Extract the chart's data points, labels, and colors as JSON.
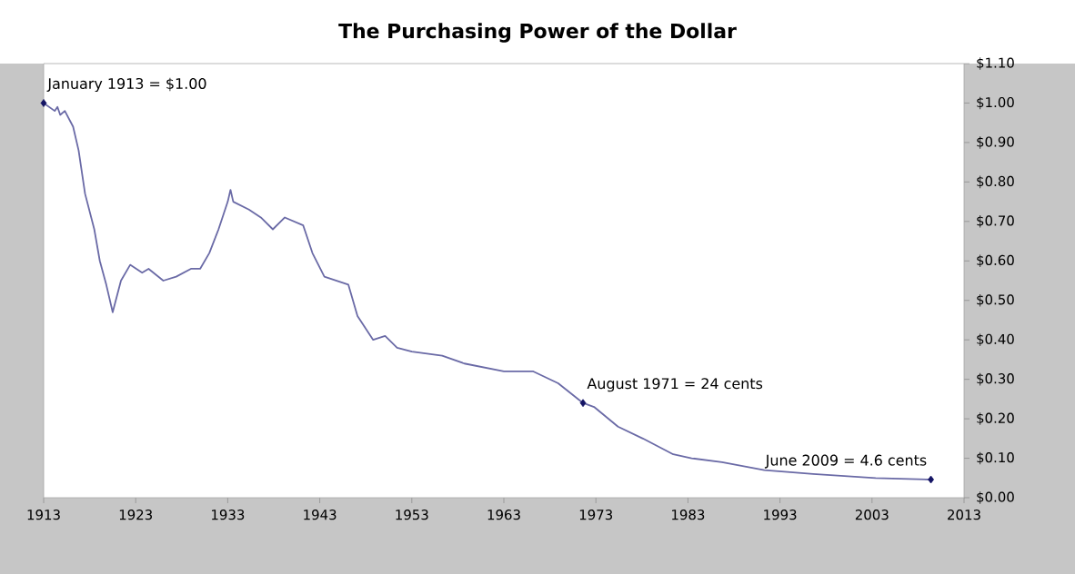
{
  "chart_data": {
    "type": "line",
    "title": "The Purchasing Power of the Dollar",
    "series": [
      {
        "color": "#6a6aa6",
        "x": [
          1913,
          1914.2,
          1914.5,
          1914.8,
          1915.3,
          1916.2,
          1916.8,
          1917.5,
          1918.5,
          1919.1,
          1919.8,
          1920.5,
          1921.4,
          1922.4,
          1923.7,
          1924.4,
          1926,
          1927.4,
          1929,
          1930,
          1931,
          1932,
          1933,
          1933.3,
          1933.6,
          1935.3,
          1936.6,
          1937.9,
          1939.2,
          1941.2,
          1942.2,
          1943.5,
          1946.1,
          1947.1,
          1948.8,
          1950.1,
          1951.4,
          1953,
          1956.3,
          1958.7,
          1963,
          1966.2,
          1968.9,
          1971.6,
          1972.8,
          1975.4,
          1978.1,
          1981.4,
          1983.4,
          1986.7,
          1991.3,
          1996.6,
          2003.4,
          2009.4
        ],
        "values": [
          1.0,
          0.98,
          0.99,
          0.97,
          0.98,
          0.94,
          0.88,
          0.77,
          0.68,
          0.6,
          0.54,
          0.47,
          0.55,
          0.59,
          0.57,
          0.58,
          0.55,
          0.56,
          0.58,
          0.58,
          0.62,
          0.68,
          0.75,
          0.78,
          0.75,
          0.73,
          0.71,
          0.68,
          0.71,
          0.69,
          0.62,
          0.56,
          0.54,
          0.46,
          0.4,
          0.41,
          0.38,
          0.37,
          0.36,
          0.34,
          0.32,
          0.32,
          0.29,
          0.24,
          0.23,
          0.18,
          0.15,
          0.11,
          0.1,
          0.09,
          0.07,
          0.06,
          0.05,
          0.046
        ]
      }
    ],
    "annotations": [
      {
        "text": "January 1913 = $1.00",
        "x": 1913,
        "y": 1.0
      },
      {
        "text": "August 1971 = 24 cents",
        "x": 1971.6,
        "y": 0.24
      },
      {
        "text": "June 2009 = 4.6 cents",
        "x": 2009.4,
        "y": 0.046
      }
    ],
    "xlim": [
      1913,
      2013
    ],
    "xticks": [
      1913,
      1923,
      1933,
      1943,
      1953,
      1963,
      1973,
      1983,
      1993,
      2003,
      2013
    ],
    "ylim": [
      0,
      1.1
    ],
    "yticks": [
      {
        "value": 0,
        "label": "$0.00"
      },
      {
        "value": 0.1,
        "label": "$0.10"
      },
      {
        "value": 0.2,
        "label": "$0.20"
      },
      {
        "value": 0.3,
        "label": "$0.30"
      },
      {
        "value": 0.4,
        "label": "$0.40"
      },
      {
        "value": 0.5,
        "label": "$0.50"
      },
      {
        "value": 0.6,
        "label": "$0.60"
      },
      {
        "value": 0.7,
        "label": "$0.70"
      },
      {
        "value": 0.8,
        "label": "$0.80"
      },
      {
        "value": 0.9,
        "label": "$0.90"
      },
      {
        "value": 1.0,
        "label": "$1.00"
      },
      {
        "value": 1.1,
        "label": "$1.10"
      }
    ],
    "grid": false,
    "marker": "none",
    "line_style": "solid"
  }
}
